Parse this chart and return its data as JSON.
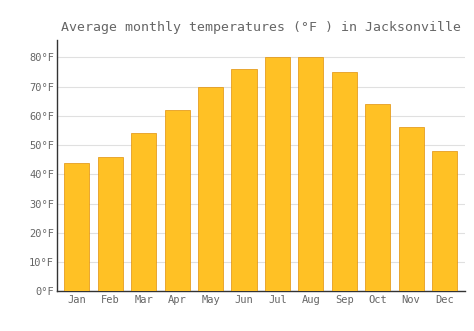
{
  "months": [
    "Jan",
    "Feb",
    "Mar",
    "Apr",
    "May",
    "Jun",
    "Jul",
    "Aug",
    "Sep",
    "Oct",
    "Nov",
    "Dec"
  ],
  "values": [
    44,
    46,
    54,
    62,
    70,
    76,
    80,
    80,
    75,
    64,
    56,
    48
  ],
  "bar_color": "#FFC125",
  "bar_edge_color": "#E0900A",
  "title": "Average monthly temperatures (°F ) in Jacksonville",
  "title_fontsize": 9.5,
  "ylabel_ticks": [
    "0°F",
    "10°F",
    "20°F",
    "30°F",
    "40°F",
    "50°F",
    "60°F",
    "70°F",
    "80°F"
  ],
  "ytick_vals": [
    0,
    10,
    20,
    30,
    40,
    50,
    60,
    70,
    80
  ],
  "ylim": [
    0,
    86
  ],
  "background_color": "#ffffff",
  "plot_bg_color": "#ffffff",
  "grid_color": "#e0e0e0",
  "tick_label_color": "#666666",
  "tick_fontsize": 7.5,
  "spine_color": "#333333"
}
